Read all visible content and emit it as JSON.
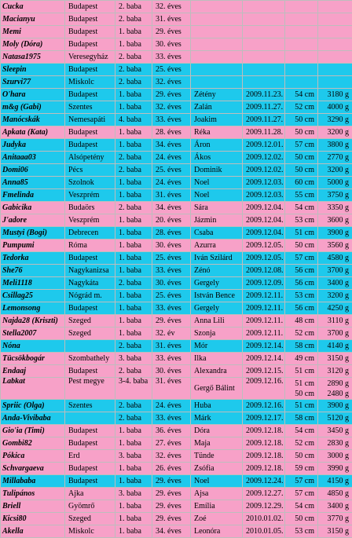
{
  "columns": [
    "name",
    "city",
    "baby",
    "age",
    "baby_name",
    "date",
    "length",
    "weight"
  ],
  "rows": [
    {
      "color": "pink",
      "name": "Cucka",
      "city": "Budapest",
      "baby": "2. baba",
      "age": "32. éves",
      "baby_name": "",
      "date": "",
      "length": "",
      "weight": ""
    },
    {
      "color": "pink",
      "name": "Macianyu",
      "city": "Budapest",
      "baby": "2. baba",
      "age": "31. éves",
      "baby_name": "",
      "date": "",
      "length": "",
      "weight": ""
    },
    {
      "color": "pink",
      "name": "Memi",
      "city": "Budapest",
      "baby": "1. baba",
      "age": "29. éves",
      "baby_name": "",
      "date": "",
      "length": "",
      "weight": ""
    },
    {
      "color": "pink",
      "name": "Moly (Dóra)",
      "city": "Budapest",
      "baby": "1. baba",
      "age": "30. éves",
      "baby_name": "",
      "date": "",
      "length": "",
      "weight": ""
    },
    {
      "color": "pink",
      "name": "Natasa1975",
      "city": "Veresegyház",
      "baby": "2. baba",
      "age": "33. éves",
      "baby_name": "",
      "date": "",
      "length": "",
      "weight": ""
    },
    {
      "color": "blue",
      "name": "Sleepin",
      "city": "Budapest",
      "baby": "2. baba",
      "age": "25. éves",
      "baby_name": "",
      "date": "",
      "length": "",
      "weight": ""
    },
    {
      "color": "blue",
      "name": "Szurvi77",
      "city": "Miskolc",
      "baby": "2. baba",
      "age": "32. éves",
      "baby_name": "",
      "date": "",
      "length": "",
      "weight": ""
    },
    {
      "color": "blue",
      "name": "O'hara",
      "city": "Budapest",
      "baby": "1. baba",
      "age": "29. éves",
      "baby_name": "Zétény",
      "date": "2009.11.23.",
      "length": "54 cm",
      "weight": "3180 g"
    },
    {
      "color": "blue",
      "name": "m&g (Gabi)",
      "city": "Szentes",
      "baby": "1. baba",
      "age": "32. éves",
      "baby_name": "Zalán",
      "date": "2009.11.27.",
      "length": "52 cm",
      "weight": "4000 g"
    },
    {
      "color": "blue",
      "name": "Manócskák",
      "city": "Nemesapáti",
      "baby": "4. baba",
      "age": "33. éves",
      "baby_name": "Joakim",
      "date": "2009.11.27.",
      "length": "50 cm",
      "weight": "3290 g"
    },
    {
      "color": "pink",
      "name": "Apkata (Kata)",
      "city": "Budapest",
      "baby": "1. baba",
      "age": "28. éves",
      "baby_name": "Réka",
      "date": "2009.11.28.",
      "length": "50 cm",
      "weight": "3200 g"
    },
    {
      "color": "blue",
      "name": "Judyka",
      "city": "Budapest",
      "baby": "1. baba",
      "age": "34. éves",
      "baby_name": "Áron",
      "date": "2009.12.01.",
      "length": "57 cm",
      "weight": "3800 g"
    },
    {
      "color": "blue",
      "name": "Anitaaa03",
      "city": "Alsópetény",
      "baby": "2. baba",
      "age": "24. éves",
      "baby_name": "Ákos",
      "date": "2009.12.02.",
      "length": "50 cm",
      "weight": "2770 g"
    },
    {
      "color": "blue",
      "name": "Domi06",
      "city": "Pécs",
      "baby": "2. baba",
      "age": "25. éves",
      "baby_name": "Dominik",
      "date": "2009.12.02.",
      "length": "50 cm",
      "weight": "3200 g"
    },
    {
      "color": "blue",
      "name": "Anna85",
      "city": "Szolnok",
      "baby": "1. baba",
      "age": "24. éves",
      "baby_name": "Noel",
      "date": "2009.12.03.",
      "length": "60 cm",
      "weight": "5000 g"
    },
    {
      "color": "blue",
      "name": "Fmelinda",
      "city": "Veszprém",
      "baby": "1. baba",
      "age": "31. éves",
      "baby_name": "Noel",
      "date": "2009.12.03.",
      "length": "55 cm",
      "weight": "3750 g"
    },
    {
      "color": "pink",
      "name": "Gabicika",
      "city": "Budaörs",
      "baby": "2. baba",
      "age": "34. éves",
      "baby_name": "Sára",
      "date": "2009.12.04.",
      "length": "54 cm",
      "weight": "3350 g"
    },
    {
      "color": "pink",
      "name": "J'adore",
      "city": "Veszprém",
      "baby": "1. baba",
      "age": "20. éves",
      "baby_name": "Jázmin",
      "date": "2009.12.04.",
      "length": "53 cm",
      "weight": "3600 g"
    },
    {
      "color": "blue",
      "name": "Mustyi (Bogi)",
      "city": "Debrecen",
      "baby": "1. baba",
      "age": "28. éves",
      "baby_name": "Csaba",
      "date": "2009.12.04.",
      "length": "51 cm",
      "weight": "3900 g"
    },
    {
      "color": "pink",
      "name": "Pumpumi",
      "city": "Róma",
      "baby": "1. baba",
      "age": "30. éves",
      "baby_name": "Azurra",
      "date": "2009.12.05.",
      "length": "50 cm",
      "weight": "3560 g"
    },
    {
      "color": "blue",
      "name": "Tedorka",
      "city": "Budapest",
      "baby": "1. baba",
      "age": "25. éves",
      "baby_name": "Iván Szilárd",
      "date": "2009.12.05.",
      "length": "57 cm",
      "weight": "4580 g"
    },
    {
      "color": "blue",
      "name": "She76",
      "city": "Nagykanizsa",
      "baby": "1. baba",
      "age": "33. éves",
      "baby_name": "Zénó",
      "date": "2009.12.08.",
      "length": "56 cm",
      "weight": "3700 g"
    },
    {
      "color": "blue",
      "name": "Meli1118",
      "city": "Nagykáta",
      "baby": "2. baba",
      "age": "30. éves",
      "baby_name": "Gergely",
      "date": "2009.12.09.",
      "length": "56 cm",
      "weight": "3400 g"
    },
    {
      "color": "blue",
      "name": "Csillag25",
      "city": "Nógrád m.",
      "baby": "1. baba",
      "age": "25. éves",
      "baby_name": "István Bence",
      "date": "2009.12.11.",
      "length": "53 cm",
      "weight": "3200 g"
    },
    {
      "color": "blue",
      "name": "Lemonsong",
      "city": "Budapest",
      "baby": "1. baba",
      "age": "33. éves",
      "baby_name": "Gergely",
      "date": "2009.12.11.",
      "length": "56 cm",
      "weight": "4250 g"
    },
    {
      "color": "pink",
      "name": "Najda28 (Kriszti)",
      "city": "Szeged",
      "baby": "1. baba",
      "age": "29. éves",
      "baby_name": "Anna Lili",
      "date": "2009.12.11.",
      "length": "48 cm",
      "weight": "3110 g"
    },
    {
      "color": "pink",
      "name": "Stella2007",
      "city": "Szeged",
      "baby": "1. baba",
      "age": "32. év",
      "baby_name": "Szonja",
      "date": "2009.12.11.",
      "length": "52 cm",
      "weight": "3700 g"
    },
    {
      "color": "blue",
      "name": "Nóna",
      "city": "",
      "baby": "2. baba",
      "age": "31. éves",
      "baby_name": "Mór",
      "date": "2009.12.14.",
      "length": "58 cm",
      "weight": "4140 g"
    },
    {
      "color": "pink",
      "name": "Tücsökbogár",
      "city": "Szombathely",
      "baby": "3. baba",
      "age": "33. éves",
      "baby_name": "Ilka",
      "date": "2009.12.14.",
      "length": "49 cm",
      "weight": "3150 g"
    },
    {
      "color": "pink",
      "name": "Endaaj",
      "city": "Budapest",
      "baby": "2. baba",
      "age": "30. éves",
      "baby_name": "Alexandra",
      "date": "2009.12.15.",
      "length": "51 cm",
      "weight": "3120 g"
    },
    {
      "color": "pink",
      "tall": true,
      "name": "Labkat",
      "city": "Pest megye",
      "baby": "3-4. baba",
      "age": "31. éves",
      "baby_name": "Gergő Bálint",
      "date": "2009.12.16.",
      "length": "51 cm 50 cm",
      "weight": "2890 g 2480 g"
    },
    {
      "color": "blue",
      "name": "Spriic (Olga)",
      "city": "Szentes",
      "baby": "2. baba",
      "age": "24. éves",
      "baby_name": "Huba",
      "date": "2009.12.16.",
      "length": "51 cm",
      "weight": "3900 g"
    },
    {
      "color": "blue",
      "name": "Anda-Vivibaba",
      "city": "",
      "baby": "2. baba",
      "age": "33. éves",
      "baby_name": "Márk",
      "date": "2009.12.17.",
      "length": "58 cm",
      "weight": "5120 g"
    },
    {
      "color": "pink",
      "name": "Gio'ia (Timi)",
      "city": "Budapest",
      "baby": "1. baba",
      "age": "36. éves",
      "baby_name": "Dóra",
      "date": "2009.12.18.",
      "length": "54 cm",
      "weight": "3450 g"
    },
    {
      "color": "pink",
      "name": "Gombi82",
      "city": "Budapest",
      "baby": "1. baba",
      "age": "27. éves",
      "baby_name": "Maja",
      "date": "2009.12.18.",
      "length": "52 cm",
      "weight": "2830 g"
    },
    {
      "color": "pink",
      "name": "Pókica",
      "city": "Erd",
      "baby": "3. baba",
      "age": "32. éves",
      "baby_name": "Tünde",
      "date": "2009.12.18.",
      "length": "50 cm",
      "weight": "3000 g"
    },
    {
      "color": "pink",
      "name": "Schvargaeva",
      "city": "Budapest",
      "baby": "1. baba",
      "age": "26. éves",
      "baby_name": "Zsófia",
      "date": "2009.12.18.",
      "length": "59 cm",
      "weight": "3990 g"
    },
    {
      "color": "blue",
      "name": "Millababa",
      "city": "Budapest",
      "baby": "1. baba",
      "age": "29. éves",
      "baby_name": "Noel",
      "date": "2009.12.24.",
      "length": "57 cm",
      "weight": "4150 g"
    },
    {
      "color": "pink",
      "name": "Tulipános",
      "city": "Ajka",
      "baby": "3. baba",
      "age": "29. éves",
      "baby_name": "Ajsa",
      "date": "2009.12.27.",
      "length": "57 cm",
      "weight": "4850 g"
    },
    {
      "color": "pink",
      "name": "Briell",
      "city": "Gyömrő",
      "baby": "1. baba",
      "age": "29. éves",
      "baby_name": "Emília",
      "date": "2009.12.29.",
      "length": "54 cm",
      "weight": "3400 g"
    },
    {
      "color": "pink",
      "name": "Kicsi80",
      "city": "Szeged",
      "baby": "1. baba",
      "age": "29. éves",
      "baby_name": "Zoé",
      "date": "2010.01.02.",
      "length": "50 cm",
      "weight": "3770 g"
    },
    {
      "color": "pink",
      "name": "Akella",
      "city": "Miskolc",
      "baby": "1. baba",
      "age": "34. éves",
      "baby_name": "Leonóra",
      "date": "2010.01.05.",
      "length": "53 cm",
      "weight": "3150 g"
    }
  ]
}
